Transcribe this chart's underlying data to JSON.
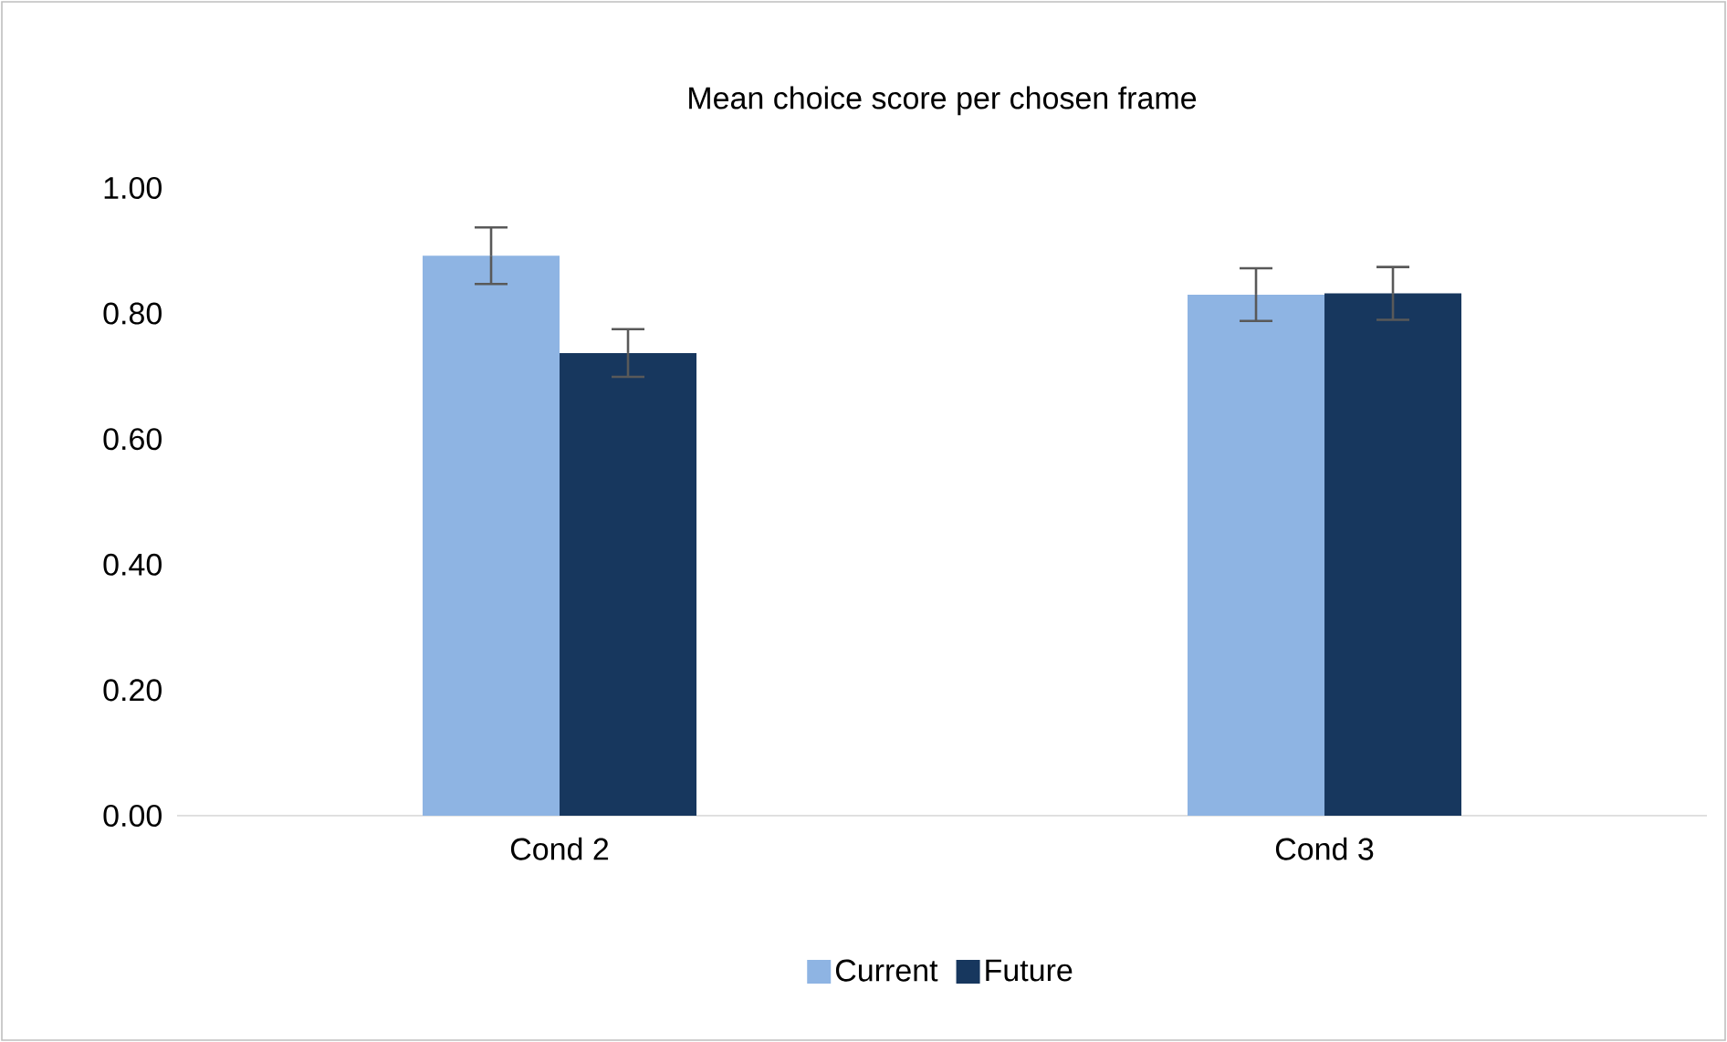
{
  "chart_data": {
    "type": "bar",
    "title": "Mean choice score per chosen frame",
    "categories": [
      "Cond 2",
      "Cond 3"
    ],
    "series": [
      {
        "name": "Current",
        "color": "#8eb4e3",
        "values": [
          0.892,
          0.83
        ],
        "errors": [
          0.045,
          0.042
        ]
      },
      {
        "name": "Future",
        "color": "#17375e",
        "values": [
          0.737,
          0.832
        ],
        "errors": [
          0.038,
          0.042
        ]
      }
    ],
    "ylim": [
      0,
      1
    ],
    "yticks": [
      {
        "value": 0,
        "label": "0.00"
      },
      {
        "value": 0.2,
        "label": "0.20"
      },
      {
        "value": 0.4,
        "label": "0.40"
      },
      {
        "value": 0.6,
        "label": "0.60"
      },
      {
        "value": 0.8,
        "label": "0.80"
      },
      {
        "value": 1,
        "label": "1.00"
      }
    ],
    "grid": false,
    "legend": "bottom"
  }
}
